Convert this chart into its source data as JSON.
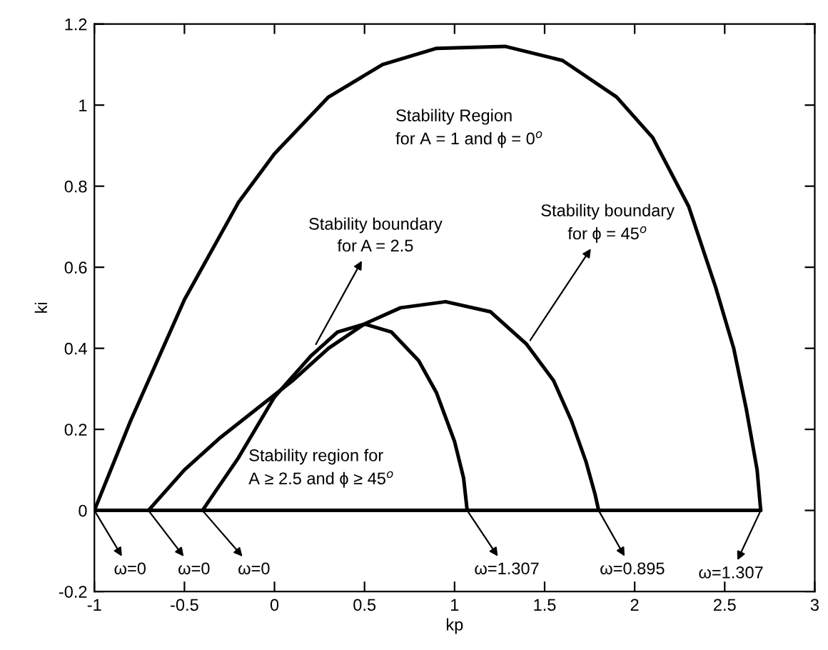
{
  "chart_data": {
    "type": "line",
    "xlabel": "kp",
    "ylabel": "ki",
    "xlim": [
      -1,
      3
    ],
    "ylim": [
      -0.2,
      1.2
    ],
    "xticks": [
      -1,
      -0.5,
      0,
      0.5,
      1,
      1.5,
      2,
      2.5,
      3
    ],
    "yticks": [
      -0.2,
      0,
      0.2,
      0.4,
      0.6,
      0.8,
      1,
      1.2
    ],
    "grid": false,
    "legend": false,
    "marker": "none",
    "line_style": "solid",
    "series": [
      {
        "color": "#000000",
        "x": [
          -1,
          -0.8,
          -0.5,
          -0.2,
          0,
          0.3,
          0.6,
          0.9,
          1.28,
          1.6,
          1.9,
          2.1,
          2.3,
          2.45,
          2.55,
          2.62,
          2.68,
          2.7
        ],
        "values": [
          0,
          0.22,
          0.52,
          0.76,
          0.88,
          1.02,
          1.1,
          1.14,
          1.145,
          1.11,
          1.02,
          0.92,
          0.75,
          0.55,
          0.4,
          0.25,
          0.1,
          0
        ]
      },
      {
        "color": "#000000",
        "x": [
          -0.4,
          -0.2,
          0,
          0.2,
          0.35,
          0.5,
          0.65,
          0.8,
          0.9,
          1.0,
          1.05,
          1.07
        ],
        "values": [
          0,
          0.13,
          0.28,
          0.38,
          0.44,
          0.46,
          0.44,
          0.37,
          0.29,
          0.17,
          0.08,
          0
        ]
      },
      {
        "color": "#000000",
        "x": [
          -0.7,
          -0.5,
          -0.3,
          -0.1,
          0.1,
          0.3,
          0.5,
          0.7,
          0.95,
          1.2,
          1.4,
          1.55,
          1.65,
          1.73,
          1.78,
          1.8
        ],
        "values": [
          0,
          0.1,
          0.18,
          0.25,
          0.32,
          0.4,
          0.46,
          0.5,
          0.515,
          0.49,
          0.41,
          0.32,
          0.22,
          0.12,
          0.04,
          0
        ]
      },
      {
        "color": "#000000",
        "x": [
          -1,
          2.7
        ],
        "values": [
          0,
          0
        ]
      }
    ],
    "annotations": [
      "Stability Region\nfor A = 1 and ϕ = 0$^{o}$",
      "Stability region for\nA ≥ 2.5 and ϕ ≥ 45$^{o}$",
      {
        "text": "Stability boundary\nfor A = 2.5",
        "x": 0.23,
        "y": 0.41
      },
      {
        "text": "Stability boundary\nfor ϕ = 45$^{o}$",
        "x": 1.42,
        "y": 0.42
      },
      {
        "text": "ω=0",
        "x": -1,
        "y": 0
      },
      {
        "text": "ω=0",
        "x": -0.7,
        "y": 0
      },
      {
        "text": "ω=0",
        "x": -0.4,
        "y": 0
      },
      {
        "text": "ω=1.307",
        "x": 1.07,
        "y": 0
      },
      {
        "text": "ω=0.895",
        "x": 1.8,
        "y": 0
      },
      {
        "text": "ω=1.307",
        "x": 2.7,
        "y": 0
      }
    ]
  }
}
